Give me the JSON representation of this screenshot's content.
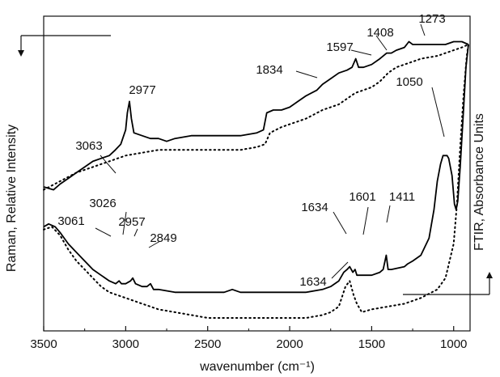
{
  "chart_data": {
    "type": "line",
    "title": "",
    "xlabel": "wavenumber (cm⁻¹)",
    "ylabel_left": "Raman, Relative Intensity",
    "ylabel_right": "FTIR, Absorbance Units",
    "xlim": [
      3500,
      900
    ],
    "x_reversed": true,
    "ylim": [
      0,
      100
    ],
    "grid": false,
    "xticks": [
      3500,
      3000,
      2500,
      2000,
      1500,
      1000
    ],
    "series": [
      {
        "style": "solid",
        "color": "#000000",
        "points": [
          [
            3500,
            48
          ],
          [
            3440,
            47
          ],
          [
            3400,
            49
          ],
          [
            3350,
            51
          ],
          [
            3300,
            53
          ],
          [
            3250,
            55
          ],
          [
            3200,
            57
          ],
          [
            3150,
            58
          ],
          [
            3100,
            59
          ],
          [
            3063,
            61
          ],
          [
            3030,
            63
          ],
          [
            3000,
            68
          ],
          [
            2990,
            74
          ],
          [
            2977,
            78
          ],
          [
            2965,
            72
          ],
          [
            2950,
            67
          ],
          [
            2900,
            66
          ],
          [
            2850,
            65
          ],
          [
            2800,
            65
          ],
          [
            2750,
            64
          ],
          [
            2700,
            65
          ],
          [
            2600,
            66
          ],
          [
            2500,
            66
          ],
          [
            2400,
            66
          ],
          [
            2300,
            66
          ],
          [
            2200,
            67
          ],
          [
            2160,
            68
          ],
          [
            2140,
            74
          ],
          [
            2100,
            75
          ],
          [
            2050,
            75
          ],
          [
            2000,
            76
          ],
          [
            1950,
            78
          ],
          [
            1900,
            80
          ],
          [
            1834,
            82
          ],
          [
            1800,
            84
          ],
          [
            1750,
            86
          ],
          [
            1700,
            88
          ],
          [
            1650,
            89
          ],
          [
            1620,
            90
          ],
          [
            1597,
            93
          ],
          [
            1580,
            90
          ],
          [
            1550,
            90
          ],
          [
            1500,
            91
          ],
          [
            1450,
            93
          ],
          [
            1408,
            95
          ],
          [
            1380,
            95
          ],
          [
            1350,
            96
          ],
          [
            1300,
            97
          ],
          [
            1273,
            99
          ],
          [
            1250,
            98
          ],
          [
            1200,
            98
          ],
          [
            1150,
            98
          ],
          [
            1100,
            98
          ],
          [
            1050,
            98
          ],
          [
            1000,
            99
          ],
          [
            950,
            99
          ],
          [
            910,
            98
          ]
        ]
      },
      {
        "style": "dotted",
        "color": "#000000",
        "points": [
          [
            3500,
            47
          ],
          [
            3400,
            50
          ],
          [
            3300,
            53
          ],
          [
            3200,
            55
          ],
          [
            3100,
            57
          ],
          [
            3000,
            59
          ],
          [
            2900,
            60
          ],
          [
            2800,
            61
          ],
          [
            2700,
            61
          ],
          [
            2600,
            61
          ],
          [
            2500,
            61
          ],
          [
            2400,
            61
          ],
          [
            2300,
            61
          ],
          [
            2200,
            62
          ],
          [
            2150,
            63
          ],
          [
            2120,
            67
          ],
          [
            2050,
            69
          ],
          [
            2000,
            70
          ],
          [
            1900,
            72
          ],
          [
            1800,
            75
          ],
          [
            1700,
            77
          ],
          [
            1650,
            79
          ],
          [
            1600,
            81
          ],
          [
            1550,
            82
          ],
          [
            1500,
            83
          ],
          [
            1450,
            85
          ],
          [
            1400,
            88
          ],
          [
            1350,
            90
          ],
          [
            1300,
            91
          ],
          [
            1250,
            92
          ],
          [
            1200,
            93
          ],
          [
            1100,
            94
          ],
          [
            1000,
            96
          ],
          [
            950,
            97
          ],
          [
            910,
            98
          ]
        ]
      },
      {
        "style": "solid",
        "color": "#000000",
        "points": [
          [
            3500,
            34
          ],
          [
            3470,
            35
          ],
          [
            3430,
            34
          ],
          [
            3400,
            32
          ],
          [
            3350,
            28
          ],
          [
            3300,
            25
          ],
          [
            3250,
            22
          ],
          [
            3200,
            19
          ],
          [
            3150,
            17
          ],
          [
            3100,
            15
          ],
          [
            3061,
            14
          ],
          [
            3040,
            15
          ],
          [
            3026,
            14
          ],
          [
            3000,
            14
          ],
          [
            2970,
            15
          ],
          [
            2957,
            16
          ],
          [
            2940,
            14
          ],
          [
            2900,
            13
          ],
          [
            2870,
            13
          ],
          [
            2849,
            14
          ],
          [
            2830,
            12
          ],
          [
            2800,
            12
          ],
          [
            2700,
            11
          ],
          [
            2600,
            11
          ],
          [
            2500,
            11
          ],
          [
            2400,
            11
          ],
          [
            2350,
            12
          ],
          [
            2300,
            11
          ],
          [
            2200,
            11
          ],
          [
            2100,
            11
          ],
          [
            2000,
            11
          ],
          [
            1900,
            11
          ],
          [
            1800,
            12
          ],
          [
            1750,
            13
          ],
          [
            1700,
            15
          ],
          [
            1670,
            18
          ],
          [
            1650,
            19
          ],
          [
            1634,
            20
          ],
          [
            1615,
            18
          ],
          [
            1601,
            19
          ],
          [
            1590,
            17
          ],
          [
            1550,
            17
          ],
          [
            1500,
            17
          ],
          [
            1450,
            18
          ],
          [
            1430,
            19
          ],
          [
            1411,
            24
          ],
          [
            1400,
            19
          ],
          [
            1380,
            19
          ],
          [
            1300,
            20
          ],
          [
            1280,
            21
          ],
          [
            1250,
            22
          ],
          [
            1200,
            24
          ],
          [
            1150,
            30
          ],
          [
            1120,
            40
          ],
          [
            1100,
            50
          ],
          [
            1080,
            56
          ],
          [
            1065,
            59
          ],
          [
            1050,
            59
          ],
          [
            1040,
            59
          ],
          [
            1030,
            58
          ],
          [
            1010,
            52
          ],
          [
            995,
            42
          ],
          [
            985,
            40
          ],
          [
            975,
            43
          ],
          [
            960,
            55
          ],
          [
            940,
            75
          ],
          [
            925,
            90
          ],
          [
            910,
            98
          ]
        ]
      },
      {
        "style": "dotted",
        "color": "#000000",
        "points": [
          [
            3500,
            33
          ],
          [
            3450,
            34
          ],
          [
            3400,
            31
          ],
          [
            3350,
            26
          ],
          [
            3300,
            22
          ],
          [
            3250,
            19
          ],
          [
            3200,
            16
          ],
          [
            3150,
            13
          ],
          [
            3100,
            11
          ],
          [
            3000,
            9
          ],
          [
            2900,
            7
          ],
          [
            2800,
            5
          ],
          [
            2700,
            4
          ],
          [
            2600,
            3
          ],
          [
            2500,
            2
          ],
          [
            2400,
            2
          ],
          [
            2300,
            2
          ],
          [
            2200,
            2
          ],
          [
            2100,
            2
          ],
          [
            2000,
            2
          ],
          [
            1900,
            2
          ],
          [
            1800,
            3
          ],
          [
            1750,
            4
          ],
          [
            1700,
            6
          ],
          [
            1660,
            13
          ],
          [
            1634,
            15
          ],
          [
            1610,
            10
          ],
          [
            1590,
            7
          ],
          [
            1560,
            4
          ],
          [
            1500,
            5
          ],
          [
            1400,
            6
          ],
          [
            1300,
            7
          ],
          [
            1200,
            9
          ],
          [
            1100,
            12
          ],
          [
            1050,
            16
          ],
          [
            1000,
            28
          ],
          [
            980,
            42
          ],
          [
            960,
            62
          ],
          [
            940,
            80
          ],
          [
            920,
            94
          ],
          [
            910,
            98
          ]
        ]
      }
    ],
    "annotations": [
      {
        "text": "3063"
      },
      {
        "text": "2977"
      },
      {
        "text": "1834"
      },
      {
        "text": "1597"
      },
      {
        "text": "1408"
      },
      {
        "text": "1273"
      },
      {
        "text": "1050"
      },
      {
        "text": "3061"
      },
      {
        "text": "3026"
      },
      {
        "text": "2957"
      },
      {
        "text": "2849"
      },
      {
        "text": "1634"
      },
      {
        "text": "1601"
      },
      {
        "text": "1411"
      },
      {
        "text": "1634"
      }
    ]
  }
}
